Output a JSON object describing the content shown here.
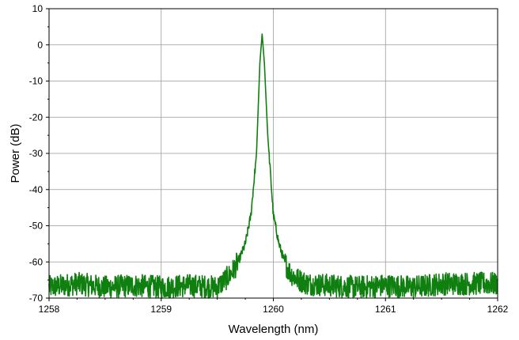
{
  "chart_data": {
    "type": "line",
    "title": "",
    "xlabel": "Wavelength (nm)",
    "ylabel": "Power (dB)",
    "xlim": [
      1258,
      1262
    ],
    "ylim": [
      -70,
      10
    ],
    "xticks": [
      "1258",
      "1259",
      "1260",
      "1261",
      "1262"
    ],
    "yticks": [
      "10",
      "0",
      "-10",
      "-20",
      "-30",
      "-40",
      "-50",
      "-60",
      "-70"
    ],
    "grid": true,
    "legend": "none",
    "series": [
      {
        "color": "#0f7f0f",
        "x": [
          1258.0,
          1258.25,
          1258.5,
          1258.75,
          1259.0,
          1259.25,
          1259.5,
          1259.6,
          1259.65,
          1259.7,
          1259.75,
          1259.8,
          1259.85,
          1259.88,
          1259.9,
          1259.92,
          1259.95,
          1260.0,
          1260.05,
          1260.1,
          1260.15,
          1260.2,
          1260.3,
          1260.5,
          1260.75,
          1261.0,
          1261.25,
          1261.5,
          1261.75,
          1262.0
        ],
        "y": [
          -67,
          -66,
          -67,
          -66.5,
          -67,
          -66.5,
          -67,
          -64,
          -62,
          -59,
          -55,
          -47,
          -30,
          -5,
          3,
          -5,
          -25,
          -47,
          -55,
          -60,
          -63,
          -64.5,
          -66,
          -66.5,
          -67,
          -66.5,
          -67,
          -66,
          -66,
          -66
        ]
      }
    ]
  }
}
